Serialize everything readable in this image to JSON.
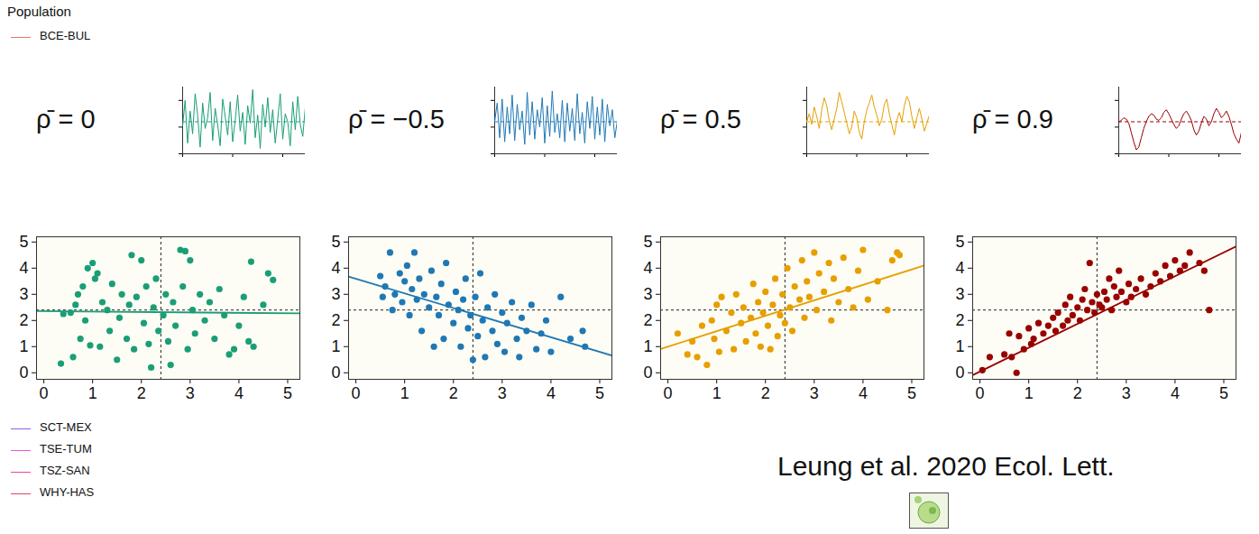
{
  "chart_data": [
    {
      "type": "scatter",
      "title": "ρ̄ = 0",
      "color": "#1b9e77",
      "x": [
        0.35,
        0.4,
        0.55,
        0.6,
        0.65,
        0.7,
        0.75,
        0.8,
        0.85,
        0.9,
        0.95,
        1.0,
        1.05,
        1.1,
        1.15,
        1.2,
        1.3,
        1.35,
        1.4,
        1.5,
        1.55,
        1.6,
        1.7,
        1.75,
        1.8,
        1.85,
        1.9,
        2.0,
        2.05,
        2.1,
        2.15,
        2.2,
        2.25,
        2.3,
        2.35,
        2.45,
        2.5,
        2.55,
        2.6,
        2.65,
        2.7,
        2.8,
        2.85,
        2.9,
        2.95,
        3.0,
        3.05,
        3.1,
        3.2,
        3.3,
        3.4,
        3.5,
        3.6,
        3.7,
        3.8,
        3.9,
        4.0,
        4.1,
        4.2,
        4.25,
        4.3,
        4.5,
        4.6,
        4.7
      ],
      "y": [
        0.35,
        2.25,
        2.3,
        0.6,
        2.6,
        3.0,
        1.3,
        3.3,
        2.0,
        4.0,
        1.05,
        4.2,
        3.6,
        3.8,
        1.0,
        2.7,
        2.4,
        1.6,
        3.4,
        0.5,
        2.1,
        3.0,
        1.3,
        2.6,
        4.5,
        0.9,
        2.9,
        4.3,
        1.9,
        3.3,
        1.1,
        0.2,
        2.5,
        3.6,
        1.6,
        2.2,
        3.0,
        1.2,
        0.3,
        2.7,
        1.8,
        4.7,
        3.3,
        4.65,
        0.9,
        4.3,
        2.4,
        1.5,
        3.0,
        2.0,
        2.7,
        1.3,
        3.2,
        2.2,
        0.7,
        0.9,
        1.8,
        2.9,
        1.2,
        4.25,
        1.0,
        2.6,
        3.8,
        3.55
      ],
      "fit": {
        "x": [
          -0.15,
          5.25
        ],
        "y": [
          2.36,
          2.27
        ]
      },
      "reference_lines": {
        "x": 2.4,
        "y": 2.4
      },
      "xlim": [
        -0.15,
        5.25
      ],
      "ylim": [
        -0.25,
        5.2
      ],
      "xticks": [
        0,
        1,
        2,
        3,
        4,
        5
      ],
      "yticks": [
        0,
        1,
        2,
        3,
        4,
        5
      ],
      "inset": {
        "type": "line",
        "values": [
          2.1,
          4.0,
          0.8,
          3.2,
          1.5,
          4.5,
          2.9,
          0.5,
          3.8,
          1.9,
          2.7,
          4.6,
          1.0,
          3.4,
          2.2,
          0.6,
          4.1,
          2.8,
          1.4,
          3.9,
          0.9,
          2.5,
          4.4,
          1.7,
          3.1,
          0.7,
          3.6,
          2.3,
          4.8,
          1.2,
          2.9,
          0.4,
          3.7,
          2.0,
          4.2,
          1.6,
          3.3,
          0.8,
          2.6,
          4.5,
          1.1,
          3.0,
          2.4,
          0.6,
          3.9,
          1.8,
          4.3,
          2.2,
          1.3,
          3.5
        ],
        "reference_line": 2.4,
        "ylim": [
          0,
          5
        ],
        "tick_labels": false
      }
    },
    {
      "type": "scatter",
      "title": "ρ̄ = −0.5",
      "color": "#1f78b4",
      "x": [
        0.5,
        0.55,
        0.6,
        0.7,
        0.75,
        0.8,
        0.9,
        0.95,
        1.0,
        1.05,
        1.1,
        1.15,
        1.2,
        1.25,
        1.3,
        1.35,
        1.4,
        1.5,
        1.55,
        1.6,
        1.65,
        1.7,
        1.75,
        1.8,
        1.85,
        1.9,
        2.0,
        2.05,
        2.1,
        2.15,
        2.2,
        2.25,
        2.3,
        2.35,
        2.4,
        2.45,
        2.5,
        2.55,
        2.6,
        2.65,
        2.7,
        2.8,
        2.85,
        2.9,
        3.0,
        3.05,
        3.1,
        3.2,
        3.3,
        3.35,
        3.4,
        3.5,
        3.6,
        3.7,
        3.8,
        3.9,
        4.0,
        4.2,
        4.4,
        4.65,
        4.7
      ],
      "y": [
        3.7,
        2.9,
        3.3,
        4.6,
        2.4,
        3.0,
        3.8,
        2.7,
        3.5,
        4.1,
        2.2,
        3.2,
        4.6,
        2.8,
        3.6,
        1.6,
        3.0,
        2.5,
        3.9,
        1.0,
        2.9,
        2.2,
        3.4,
        1.3,
        4.2,
        2.6,
        1.9,
        3.1,
        2.4,
        1.0,
        2.8,
        3.6,
        1.7,
        2.2,
        0.5,
        2.9,
        1.4,
        3.8,
        2.0,
        0.6,
        2.5,
        1.6,
        3.0,
        1.1,
        2.3,
        0.8,
        1.9,
        2.7,
        1.3,
        0.6,
        2.1,
        1.6,
        2.6,
        0.9,
        1.5,
        2.0,
        0.8,
        2.9,
        1.3,
        1.6,
        1.0
      ],
      "fit": {
        "x": [
          -0.15,
          5.25
        ],
        "y": [
          3.68,
          0.66
        ]
      },
      "reference_lines": {
        "x": 2.4,
        "y": 2.4
      },
      "xlim": [
        -0.15,
        5.25
      ],
      "ylim": [
        -0.25,
        5.2
      ],
      "xticks": [
        0,
        1,
        2,
        3,
        4,
        5
      ],
      "yticks": [
        0,
        1,
        2,
        3,
        4,
        5
      ],
      "inset": {
        "type": "line",
        "values": [
          2.4,
          3.8,
          1.2,
          4.1,
          0.9,
          3.5,
          1.5,
          4.4,
          1.0,
          3.7,
          1.8,
          3.2,
          0.7,
          4.6,
          1.4,
          3.9,
          1.1,
          3.3,
          2.0,
          4.2,
          0.8,
          3.6,
          1.3,
          4.7,
          1.6,
          3.0,
          1.2,
          4.0,
          0.9,
          3.8,
          1.7,
          3.4,
          1.0,
          4.5,
          1.5,
          3.1,
          0.8,
          3.9,
          1.9,
          4.3,
          1.1,
          3.5,
          1.4,
          4.1,
          0.9,
          3.7,
          2.1,
          3.3,
          1.2,
          2.5
        ],
        "reference_line": 2.4,
        "ylim": [
          0,
          5
        ],
        "tick_labels": false
      }
    },
    {
      "type": "scatter",
      "title": "ρ̄ = 0.5",
      "color": "#e69f00",
      "x": [
        0.2,
        0.4,
        0.5,
        0.6,
        0.7,
        0.8,
        0.9,
        0.95,
        1.0,
        1.05,
        1.1,
        1.2,
        1.3,
        1.35,
        1.4,
        1.5,
        1.55,
        1.6,
        1.7,
        1.75,
        1.8,
        1.85,
        1.9,
        1.95,
        2.0,
        2.05,
        2.1,
        2.15,
        2.2,
        2.25,
        2.3,
        2.35,
        2.4,
        2.45,
        2.5,
        2.55,
        2.6,
        2.7,
        2.75,
        2.8,
        2.85,
        2.9,
        3.0,
        3.05,
        3.1,
        3.2,
        3.3,
        3.35,
        3.4,
        3.5,
        3.6,
        3.7,
        3.8,
        3.9,
        4.0,
        4.1,
        4.3,
        4.5,
        4.6,
        4.7,
        4.75
      ],
      "y": [
        1.5,
        0.7,
        1.2,
        0.6,
        1.8,
        0.3,
        2.0,
        1.3,
        2.6,
        0.8,
        2.9,
        1.6,
        2.3,
        0.9,
        3.0,
        1.9,
        2.5,
        1.2,
        2.1,
        3.4,
        1.5,
        2.7,
        1.0,
        2.3,
        3.1,
        1.8,
        0.9,
        2.6,
        3.6,
        1.4,
        2.2,
        3.0,
        1.9,
        4.0,
        2.5,
        1.6,
        3.3,
        2.8,
        4.3,
        2.1,
        3.5,
        2.9,
        4.6,
        2.4,
        3.8,
        3.1,
        4.2,
        2.0,
        3.6,
        2.7,
        4.4,
        3.2,
        2.5,
        3.9,
        4.7,
        2.8,
        3.5,
        2.4,
        4.3,
        4.6,
        4.5
      ],
      "fit": {
        "x": [
          -0.15,
          5.25
        ],
        "y": [
          0.91,
          4.1
        ]
      },
      "reference_lines": {
        "x": 2.4,
        "y": 2.4
      },
      "xlim": [
        -0.15,
        5.25
      ],
      "ylim": [
        -0.25,
        5.2
      ],
      "xticks": [
        0,
        1,
        2,
        3,
        4,
        5
      ],
      "yticks": [
        0,
        1,
        2,
        3,
        4,
        5
      ],
      "inset": {
        "type": "line",
        "values": [
          2.4,
          3.0,
          2.2,
          3.5,
          2.8,
          1.9,
          3.3,
          4.2,
          3.6,
          2.5,
          1.8,
          2.6,
          3.4,
          4.6,
          3.9,
          3.1,
          2.3,
          1.5,
          2.0,
          3.2,
          2.7,
          1.6,
          1.1,
          2.4,
          3.3,
          3.8,
          4.4,
          3.5,
          2.9,
          2.1,
          2.6,
          3.7,
          4.1,
          3.0,
          2.2,
          1.4,
          2.5,
          3.1,
          2.4,
          3.6,
          4.3,
          3.9,
          2.8,
          1.9,
          2.7,
          3.4,
          2.6,
          1.7,
          2.3,
          2.9
        ],
        "reference_line": 2.4,
        "ylim": [
          0,
          5
        ],
        "tick_labels": false
      }
    },
    {
      "type": "scatter",
      "title": "ρ̄ = 0.9",
      "color": "#990000",
      "x": [
        0.05,
        0.2,
        0.5,
        0.6,
        0.65,
        0.75,
        0.8,
        0.9,
        1.0,
        1.05,
        1.1,
        1.2,
        1.3,
        1.4,
        1.5,
        1.55,
        1.6,
        1.7,
        1.75,
        1.8,
        1.85,
        1.9,
        2.0,
        2.05,
        2.1,
        2.15,
        2.2,
        2.25,
        2.3,
        2.35,
        2.4,
        2.45,
        2.5,
        2.55,
        2.6,
        2.65,
        2.7,
        2.75,
        2.8,
        2.85,
        2.9,
        3.0,
        3.05,
        3.1,
        3.2,
        3.3,
        3.4,
        3.5,
        3.6,
        3.7,
        3.8,
        3.9,
        4.0,
        4.1,
        4.2,
        4.3,
        4.5,
        4.6,
        4.7
      ],
      "y": [
        0.1,
        0.6,
        0.7,
        1.5,
        0.6,
        0.0,
        1.4,
        0.9,
        1.7,
        1.1,
        1.3,
        1.9,
        1.5,
        1.8,
        2.1,
        1.6,
        2.3,
        1.8,
        2.6,
        2.0,
        2.9,
        2.2,
        2.5,
        2.0,
        2.8,
        3.2,
        2.4,
        4.2,
        2.7,
        2.3,
        3.0,
        2.6,
        2.5,
        3.1,
        2.8,
        3.6,
        2.4,
        3.3,
        2.9,
        3.9,
        3.1,
        2.7,
        3.4,
        2.9,
        3.2,
        3.6,
        3.0,
        3.3,
        3.8,
        3.5,
        4.1,
        3.7,
        4.3,
        3.9,
        4.1,
        4.6,
        4.2,
        3.9,
        2.4
      ],
      "fit": {
        "x": [
          -0.15,
          5.25
        ],
        "y": [
          -0.09,
          4.83
        ]
      },
      "reference_lines": {
        "x": 2.4,
        "y": 2.4
      },
      "xlim": [
        -0.15,
        5.25
      ],
      "ylim": [
        -0.25,
        5.2
      ],
      "xticks": [
        0,
        1,
        2,
        3,
        4,
        5
      ],
      "yticks": [
        0,
        1,
        2,
        3,
        4,
        5
      ],
      "inset": {
        "type": "line",
        "values": [
          2.4,
          2.5,
          2.7,
          2.6,
          2.3,
          1.6,
          0.9,
          0.3,
          0.5,
          1.2,
          1.9,
          2.4,
          2.8,
          3.0,
          2.9,
          2.6,
          2.5,
          2.7,
          3.1,
          3.3,
          3.0,
          2.6,
          2.2,
          1.9,
          2.1,
          2.6,
          3.0,
          3.2,
          2.9,
          2.5,
          1.8,
          1.4,
          1.7,
          2.3,
          2.8,
          2.6,
          2.1,
          2.4,
          3.0,
          3.4,
          3.1,
          2.7,
          2.9,
          3.2,
          2.8,
          2.2,
          1.5,
          1.1,
          0.8,
          1.6
        ],
        "reference_line": 2.4,
        "ylim": [
          0,
          5
        ],
        "tick_labels": false
      }
    }
  ],
  "population_legend": {
    "title": "Population",
    "entries": [
      {
        "name": "BCE-BUL",
        "color": "#f07068"
      },
      {
        "name": "SCT-MEX",
        "color": "#9b59e8"
      },
      {
        "name": "TSE-TUM",
        "color": "#ee55dd"
      },
      {
        "name": "TSZ-SAN",
        "color": "#f0449c"
      },
      {
        "name": "WHY-HAS",
        "color": "#e0446a"
      }
    ]
  },
  "citation": "Leung et al. 2020 Ecol. Lett."
}
